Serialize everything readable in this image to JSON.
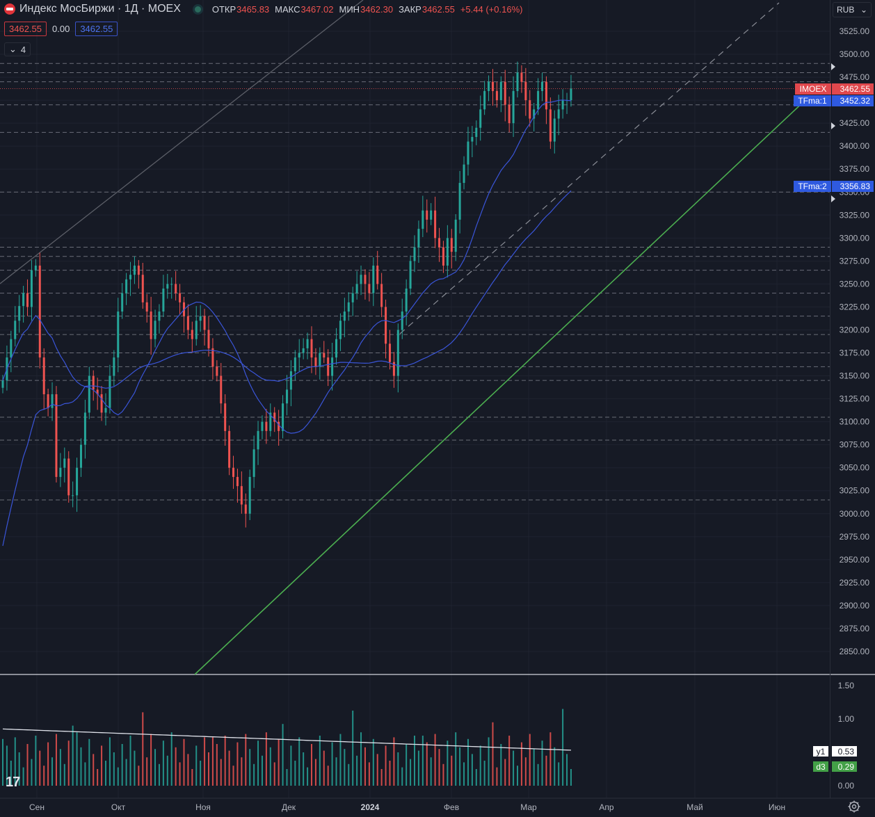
{
  "legend": {
    "title": "Индекс МосБиржи · 1Д · MOEX",
    "open_label": "ОТКР",
    "open": "3465.83",
    "high_label": "МАКС",
    "high": "3467.02",
    "low_label": "МИН",
    "low": "3462.30",
    "close_label": "ЗАКР",
    "close": "3462.55",
    "change": "+5.44 (+0.16%)",
    "bid": "3462.55",
    "spread": "0.00",
    "ask": "3462.55",
    "indicators_count": "4"
  },
  "currency": "RUB",
  "colors": {
    "background": "#161a25",
    "up": "#26a69a",
    "down": "#ef5350",
    "ma_short": "#3a55d9",
    "trendline": "#4caf50",
    "text": "#b2b5be"
  },
  "icons": [
    "ruble-flag-icon",
    "status-dot-icon",
    "chevron-down-icon",
    "tradingview-logo-icon",
    "gear-icon"
  ],
  "chart_data": [
    {
      "type": "candlestick",
      "ylim": [
        2825,
        3540
      ],
      "y_ticks": [
        "3525.00",
        "3500.00",
        "3475.00",
        "3450.00",
        "3425.00",
        "3400.00",
        "3375.00",
        "3350.00",
        "3325.00",
        "3300.00",
        "3275.00",
        "3250.00",
        "3225.00",
        "3200.00",
        "3175.00",
        "3150.00",
        "3125.00",
        "3100.00",
        "3075.00",
        "3050.00",
        "3025.00",
        "3000.00",
        "2975.00",
        "2950.00",
        "2925.00",
        "2900.00",
        "2875.00",
        "2850.00"
      ],
      "x_labels": [
        "Сен",
        "Окт",
        "Ноя",
        "Дек",
        "2024",
        "Фев",
        "Мар",
        "Апр",
        "Май",
        "Июн"
      ],
      "closes": [
        3145,
        3170,
        3190,
        3210,
        3226,
        3240,
        3225,
        3265,
        3270,
        3170,
        3130,
        3115,
        3130,
        3040,
        3050,
        3060,
        3020,
        3020,
        3050,
        3075,
        3110,
        3150,
        3135,
        3130,
        3110,
        3115,
        3150,
        3170,
        3220,
        3240,
        3255,
        3260,
        3270,
        3260,
        3230,
        3220,
        3190,
        3210,
        3220,
        3245,
        3250,
        3250,
        3240,
        3230,
        3215,
        3200,
        3190,
        3210,
        3215,
        3200,
        3180,
        3160,
        3150,
        3120,
        3090,
        3050,
        3040,
        3030,
        3010,
        3000,
        3040,
        3070,
        3090,
        3100,
        3090,
        3110,
        3100,
        3090,
        3120,
        3135,
        3155,
        3170,
        3175,
        3180,
        3190,
        3170,
        3160,
        3175,
        3170,
        3150,
        3170,
        3190,
        3210,
        3220,
        3230,
        3240,
        3250,
        3260,
        3250,
        3240,
        3270,
        3250,
        3225,
        3185,
        3165,
        3150,
        3200,
        3220,
        3245,
        3275,
        3290,
        3310,
        3330,
        3320,
        3330,
        3300,
        3290,
        3270,
        3300,
        3285,
        3320,
        3360,
        3380,
        3405,
        3410,
        3420,
        3440,
        3460,
        3470,
        3460,
        3450,
        3470,
        3445,
        3425,
        3460,
        3480,
        3470,
        3450,
        3430,
        3440,
        3460,
        3470,
        3440,
        3405,
        3430,
        3440,
        3450,
        3450,
        3462.55
      ],
      "series": [
        {
          "name": "TFma:1",
          "last": "3452.32"
        },
        {
          "name": "TFma:2",
          "last": "3356.83"
        },
        {
          "name": "IMOEX",
          "last": "3462.55"
        }
      ],
      "horizontal_levels": [
        3490,
        3480,
        3470,
        3462.55,
        3445,
        3415,
        3350,
        3290,
        3280,
        3265,
        3240,
        3215,
        3195,
        3175,
        3160,
        3145,
        3105,
        3080,
        3015
      ]
    },
    {
      "type": "bar",
      "ylim": [
        0,
        1.6
      ],
      "y_ticks": [
        "1.50",
        "1.00",
        "0.00"
      ],
      "series": [
        {
          "name": "y1",
          "last": "0.53"
        },
        {
          "name": "d3",
          "last": "0.29"
        }
      ]
    }
  ]
}
